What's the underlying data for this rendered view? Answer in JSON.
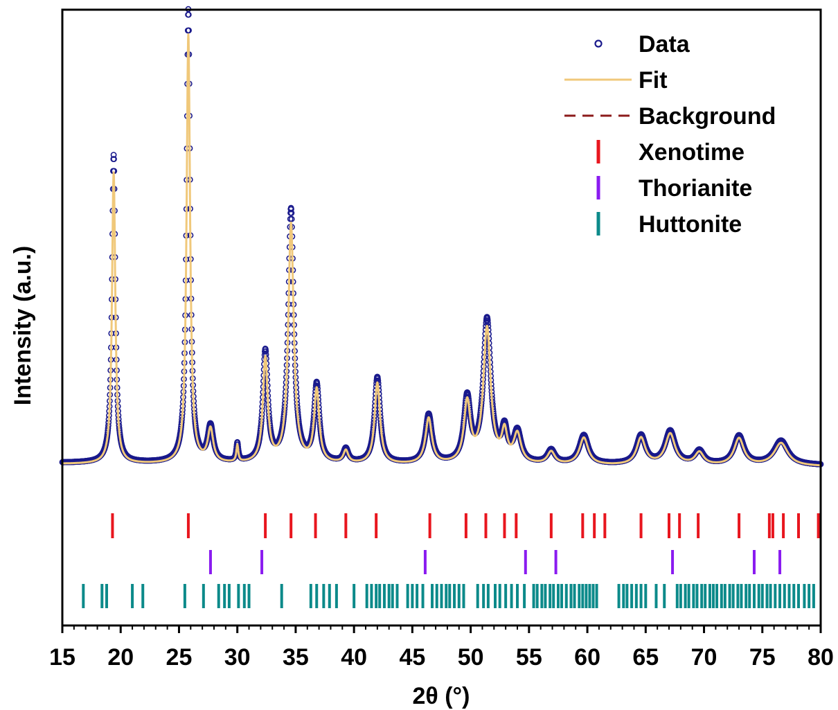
{
  "chart_data": {
    "type": "line",
    "title": "",
    "xlabel": "2θ (°)",
    "ylabel": "Intensity (a.u.)",
    "xlim": [
      15,
      80
    ],
    "x_ticks": [
      15,
      20,
      25,
      30,
      35,
      40,
      45,
      50,
      55,
      60,
      65,
      70,
      75,
      80
    ],
    "y_ticks": [],
    "grid": false,
    "legend_position": "top-right",
    "baseline": 1.0,
    "peaks": [
      {
        "pos": 19.4,
        "height": 14.0,
        "width": 0.17
      },
      {
        "pos": 25.8,
        "height": 20.6,
        "width": 0.18
      },
      {
        "pos": 27.7,
        "height": 1.6,
        "width": 0.28
      },
      {
        "pos": 30.0,
        "height": 0.8,
        "width": 0.1
      },
      {
        "pos": 32.4,
        "height": 5.0,
        "width": 0.25
      },
      {
        "pos": 34.6,
        "height": 11.5,
        "width": 0.28
      },
      {
        "pos": 36.8,
        "height": 3.5,
        "width": 0.26
      },
      {
        "pos": 39.3,
        "height": 0.6,
        "width": 0.25
      },
      {
        "pos": 42.0,
        "height": 3.9,
        "width": 0.28
      },
      {
        "pos": 46.4,
        "height": 2.2,
        "width": 0.33
      },
      {
        "pos": 49.7,
        "height": 2.9,
        "width": 0.33
      },
      {
        "pos": 51.4,
        "height": 6.5,
        "width": 0.38
      },
      {
        "pos": 52.9,
        "height": 1.4,
        "width": 0.28
      },
      {
        "pos": 54.0,
        "height": 1.4,
        "width": 0.38
      },
      {
        "pos": 56.9,
        "height": 0.6,
        "width": 0.38
      },
      {
        "pos": 59.7,
        "height": 1.3,
        "width": 0.45
      },
      {
        "pos": 64.6,
        "height": 1.3,
        "width": 0.45
      },
      {
        "pos": 67.1,
        "height": 1.5,
        "width": 0.5
      },
      {
        "pos": 69.6,
        "height": 0.6,
        "width": 0.45
      },
      {
        "pos": 73.0,
        "height": 1.3,
        "width": 0.5
      },
      {
        "pos": 76.6,
        "height": 1.1,
        "width": 0.7
      }
    ],
    "series": [
      {
        "name": "Data",
        "kind": "scatter-open-circle",
        "color": "#1a1a8c"
      },
      {
        "name": "Fit",
        "kind": "line",
        "color": "#f0c87a"
      },
      {
        "name": "Background",
        "kind": "dashed-line",
        "color": "#8b1a1a"
      }
    ],
    "reference_phases": [
      {
        "name": "Xenotime",
        "color": "#e8161e",
        "positions": [
          19.3,
          25.8,
          32.4,
          34.6,
          36.7,
          39.3,
          41.9,
          46.5,
          49.6,
          51.3,
          52.9,
          53.9,
          56.9,
          59.6,
          60.6,
          61.5,
          64.6,
          67.0,
          67.9,
          69.5,
          73.0,
          75.6,
          75.9,
          76.8,
          78.1,
          79.8
        ]
      },
      {
        "name": "Thorianite",
        "color": "#8a1bf0",
        "positions": [
          27.7,
          32.1,
          46.1,
          54.7,
          57.3,
          67.3,
          74.3,
          76.5
        ]
      },
      {
        "name": "Huttonite",
        "color": "#0c8a8a",
        "positions": [
          16.8,
          18.4,
          18.8,
          21.0,
          21.9,
          25.5,
          27.1,
          28.4,
          28.9,
          29.3,
          30.1,
          30.6,
          31.0,
          33.8,
          36.3,
          36.8,
          37.4,
          37.9,
          38.5,
          40.0,
          41.1,
          41.5,
          41.9,
          42.2,
          42.6,
          43.0,
          43.3,
          43.7,
          44.6,
          45.0,
          45.4,
          45.9,
          46.7,
          47.1,
          47.5,
          47.9,
          48.2,
          48.6,
          49.0,
          49.4,
          50.6,
          51.1,
          51.5,
          52.1,
          52.5,
          53.0,
          53.5,
          54.0,
          54.6,
          55.4,
          55.7,
          56.1,
          56.4,
          56.8,
          57.1,
          57.5,
          57.8,
          58.2,
          58.6,
          58.9,
          59.3,
          59.6,
          59.9,
          60.2,
          60.5,
          60.8,
          62.7,
          63.1,
          63.4,
          63.8,
          64.2,
          64.6,
          65.0,
          65.9,
          66.6,
          67.7,
          68.0,
          68.4,
          68.7,
          69.1,
          69.4,
          69.8,
          70.1,
          70.5,
          70.8,
          71.1,
          71.5,
          71.8,
          72.2,
          72.5,
          72.9,
          73.2,
          73.6,
          73.9,
          74.3,
          74.7,
          75.0,
          75.4,
          75.7,
          76.1,
          76.5,
          76.9,
          77.3,
          77.7,
          78.1,
          78.6,
          79.0,
          79.4
        ]
      }
    ]
  }
}
